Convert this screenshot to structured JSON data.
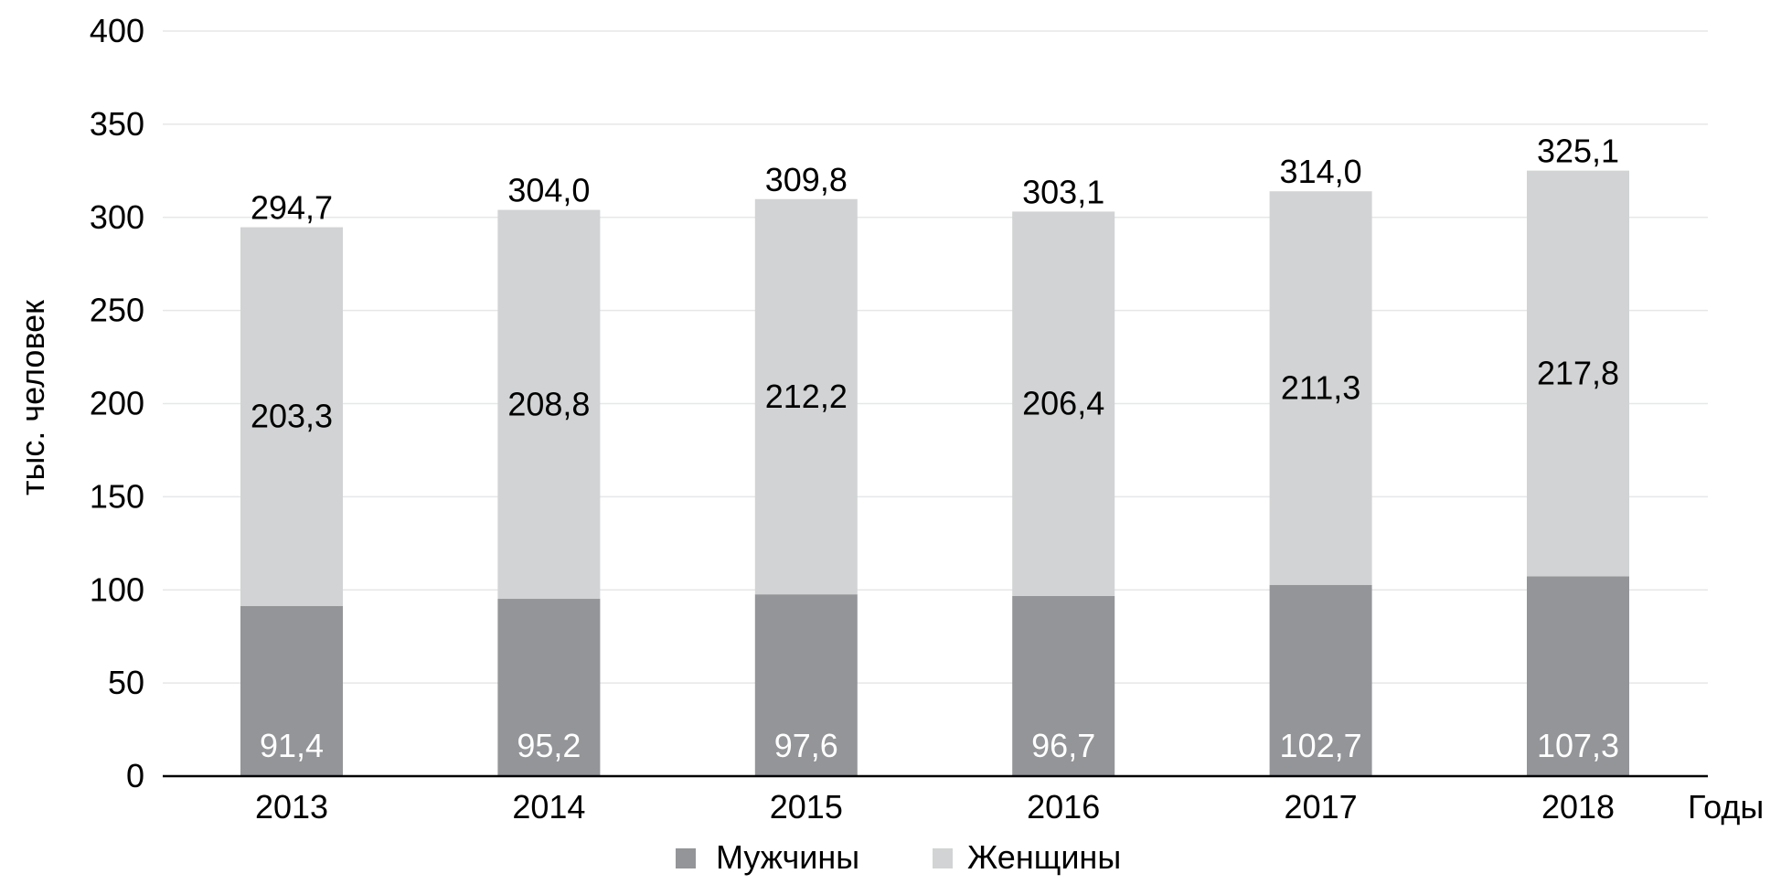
{
  "chart_data": {
    "type": "bar",
    "stacked": true,
    "title": "",
    "xlabel": "Годы",
    "ylabel": "тыс. человек",
    "ylim": [
      0,
      400
    ],
    "yticks": [
      "0",
      "50",
      "100",
      "150",
      "200",
      "250",
      "300",
      "350",
      "400"
    ],
    "grid": true,
    "legend_position": "bottom-center",
    "categories": [
      "2013",
      "2014",
      "2015",
      "2016",
      "2017",
      "2018"
    ],
    "series": [
      {
        "name": "Мужчины",
        "color": "#939598",
        "label_color": "#ffffff",
        "values": [
          91.4,
          95.2,
          97.6,
          96.7,
          102.7,
          107.3
        ],
        "labels": [
          "91,4",
          "95,2",
          "97,6",
          "96,7",
          "102,7",
          "107,3"
        ]
      },
      {
        "name": "Женщины",
        "color": "#d1d3d4",
        "label_color": "#000000",
        "values": [
          203.3,
          208.8,
          212.2,
          206.4,
          211.3,
          217.8
        ],
        "labels": [
          "203,3",
          "208,8",
          "212,2",
          "206,4",
          "211,3",
          "217,8"
        ]
      }
    ],
    "totals": [
      294.7,
      304.0,
      309.8,
      303.1,
      314.0,
      325.1
    ],
    "total_labels": [
      "294,7",
      "304,0",
      "309,8",
      "303,1",
      "314,0",
      "325,1"
    ]
  }
}
